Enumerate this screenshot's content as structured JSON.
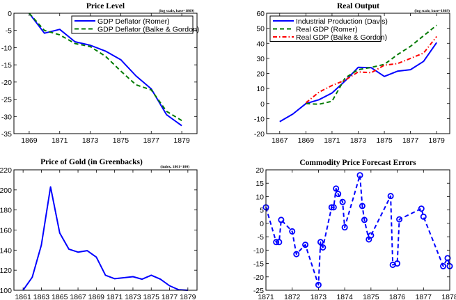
{
  "chart_data": [
    {
      "type": "line",
      "title": "Price Level",
      "subtitle": "(log scale, base=1869)",
      "xlim": [
        1868,
        1880
      ],
      "ylim": [
        -35,
        0
      ],
      "xticks": [
        1869,
        1871,
        1873,
        1875,
        1877,
        1879
      ],
      "yticks": [
        0,
        -5,
        -10,
        -15,
        -20,
        -25,
        -30,
        -35
      ],
      "grid": false,
      "legend": "top-right",
      "x": [
        1869,
        1870,
        1871,
        1872,
        1873,
        1874,
        1875,
        1876,
        1877,
        1878,
        1879
      ],
      "series": [
        {
          "name": "GDP Deflator (Romer)",
          "color": "#0000ff",
          "style": "solid",
          "values": [
            0,
            -5.8,
            -4.7,
            -8.3,
            -9.3,
            -11,
            -13.5,
            -18.2,
            -22,
            -29.5,
            -32.7
          ]
        },
        {
          "name": "GDP Deflator (Balke & Gordon)",
          "color": "#007a00",
          "style": "dashed",
          "values": [
            0,
            -5,
            -6.3,
            -8.8,
            -9.7,
            -12.5,
            -16.8,
            -20.8,
            -22.3,
            -28.5,
            -31.2
          ]
        }
      ]
    },
    {
      "type": "line",
      "title": "Real Output",
      "subtitle": "(log scale, base=1869)",
      "xlim": [
        1866,
        1880
      ],
      "ylim": [
        -20,
        60
      ],
      "xticks": [
        1867,
        1869,
        1871,
        1873,
        1875,
        1877,
        1879
      ],
      "yticks": [
        60,
        50,
        40,
        30,
        20,
        10,
        0,
        -10,
        -20
      ],
      "grid": false,
      "legend": "top-left",
      "series": [
        {
          "name": "Industrial Production (Davis)",
          "color": "#0000ff",
          "style": "solid",
          "x": [
            1867,
            1868,
            1869,
            1870,
            1871,
            1872,
            1873,
            1874,
            1875,
            1876,
            1877,
            1878,
            1879
          ],
          "values": [
            -12,
            -7,
            0,
            2.5,
            7,
            15,
            24,
            23.8,
            18,
            21.5,
            22.5,
            28,
            40.5
          ]
        },
        {
          "name": "Real GDP (Romer)",
          "color": "#007a00",
          "style": "dashed",
          "x": [
            1869,
            1870,
            1871,
            1872,
            1873,
            1874,
            1875,
            1876,
            1877,
            1878,
            1879
          ],
          "values": [
            0,
            -0.5,
            1.5,
            17,
            22.5,
            24,
            26,
            32.5,
            38,
            45,
            52
          ]
        },
        {
          "name": "Real GDP (Balke & Gordon)",
          "color": "#ff0000",
          "style": "dashdot",
          "x": [
            1869,
            1870,
            1871,
            1872,
            1873,
            1874,
            1875,
            1876,
            1877,
            1878,
            1879
          ],
          "values": [
            0.5,
            7.5,
            12,
            15.5,
            21,
            20.5,
            25.5,
            26.5,
            30,
            33.5,
            44.5
          ]
        }
      ]
    },
    {
      "type": "line",
      "title": "Price of Gold (in Greenbacks)",
      "subtitle": "(index, 1861=100)",
      "xlim": [
        1860,
        1880
      ],
      "ylim": [
        100,
        220
      ],
      "xticks": [
        1861,
        1863,
        1865,
        1867,
        1869,
        1871,
        1873,
        1875,
        1877,
        1879
      ],
      "yticks": [
        220,
        200,
        180,
        160,
        140,
        120,
        100
      ],
      "grid": false,
      "series": [
        {
          "color": "#0000ff",
          "style": "solid",
          "x": [
            1861,
            1862,
            1863,
            1864,
            1865,
            1866,
            1867,
            1868,
            1869,
            1870,
            1871,
            1872,
            1873,
            1874,
            1875,
            1876,
            1877,
            1878,
            1879
          ],
          "values": [
            100,
            113,
            145,
            203,
            157,
            141,
            138,
            139.5,
            133,
            115,
            111.5,
            112.5,
            113.5,
            111,
            115,
            111,
            104.5,
            100.5,
            100
          ]
        }
      ]
    },
    {
      "type": "line",
      "title": "Commodity Price Forecast Errors",
      "xlim": [
        1871,
        1878
      ],
      "ylim": [
        -25,
        20
      ],
      "xticks": [
        1871,
        1872,
        1873,
        1874,
        1875,
        1876,
        1877,
        1878
      ],
      "yticks": [
        20,
        15,
        10,
        5,
        0,
        -5,
        -10,
        -15,
        -20,
        -25
      ],
      "grid": false,
      "series": [
        {
          "color": "#0000ff",
          "style": "dashed",
          "marker": "circle",
          "x": [
            1871.0,
            1871.39,
            1871.5,
            1871.58,
            1872.0,
            1872.16,
            1872.5,
            1873.0,
            1873.08,
            1873.17,
            1873.5,
            1873.58,
            1873.67,
            1873.75,
            1873.92,
            1874.0,
            1874.58,
            1874.67,
            1874.75,
            1874.92,
            1875.0,
            1875.75,
            1875.83,
            1876.0,
            1876.08,
            1876.92,
            1877.0,
            1877.75,
            1877.92,
            1878.0
          ],
          "values": [
            6,
            -7,
            -7,
            1.3,
            -3,
            -11.5,
            -8,
            -23,
            -7,
            -9,
            6,
            6,
            13,
            11,
            8,
            -1.5,
            18,
            6.5,
            1.3,
            -6,
            -4.5,
            10.2,
            -15.5,
            -15,
            1.5,
            5.5,
            2.5,
            -16,
            -13,
            -16
          ]
        }
      ]
    }
  ]
}
